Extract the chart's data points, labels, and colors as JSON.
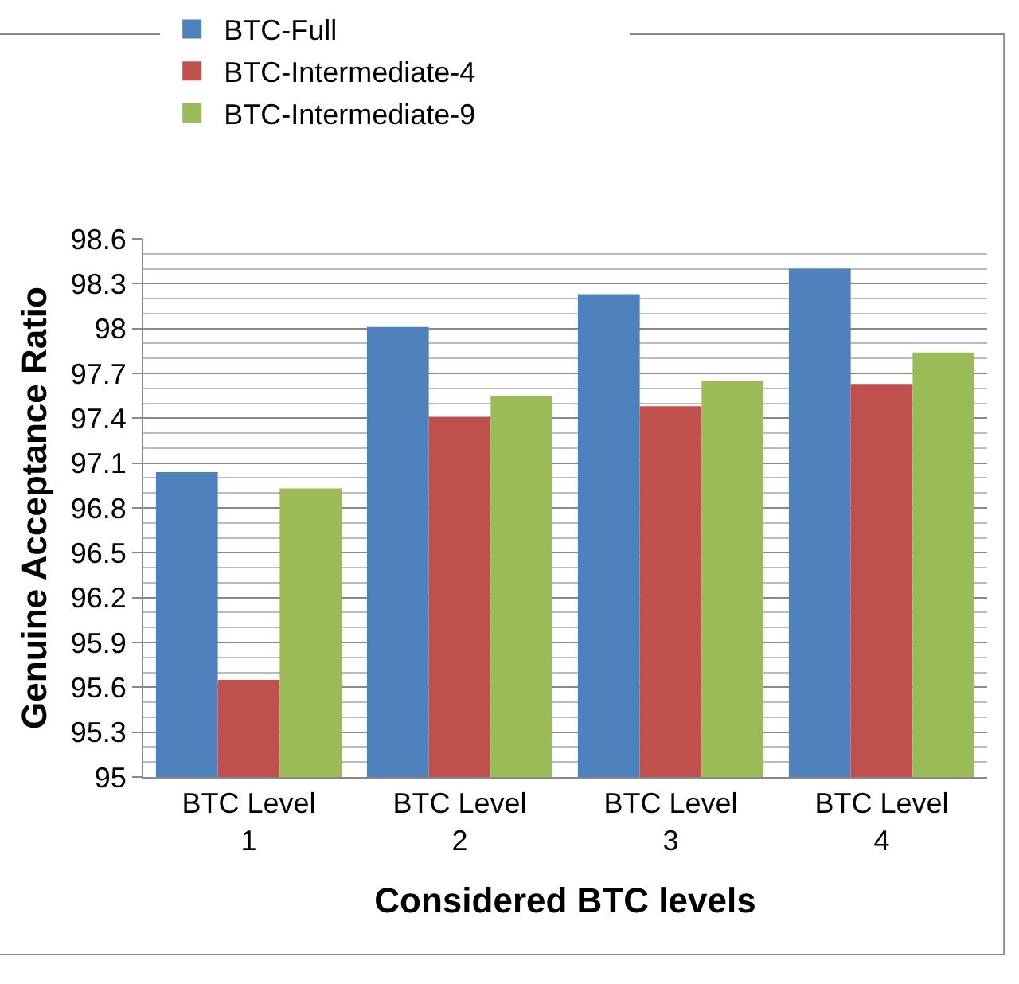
{
  "chart_data": {
    "type": "bar",
    "xlabel": "Considered BTC levels",
    "ylabel": "Genuine Acceptance Ratio",
    "categories": [
      "BTC Level 1",
      "BTC Level 2",
      "BTC Level 3",
      "BTC Level 4"
    ],
    "series": [
      {
        "name": "BTC-Full",
        "color": "#4f81bd",
        "values": [
          97.04,
          98.01,
          98.23,
          98.4
        ]
      },
      {
        "name": "BTC-Intermediate-4",
        "color": "#c0504d",
        "values": [
          95.65,
          97.41,
          97.48,
          97.63
        ]
      },
      {
        "name": "BTC-Intermediate-9",
        "color": "#9bbb59",
        "values": [
          96.93,
          97.55,
          97.65,
          97.84
        ]
      }
    ],
    "ylim": [
      95,
      98.6
    ],
    "yticks": [
      95,
      95.3,
      95.6,
      95.9,
      96.2,
      96.5,
      96.8,
      97.1,
      97.4,
      97.7,
      98,
      98.3,
      98.6
    ],
    "grid": "y",
    "legend": "top"
  }
}
